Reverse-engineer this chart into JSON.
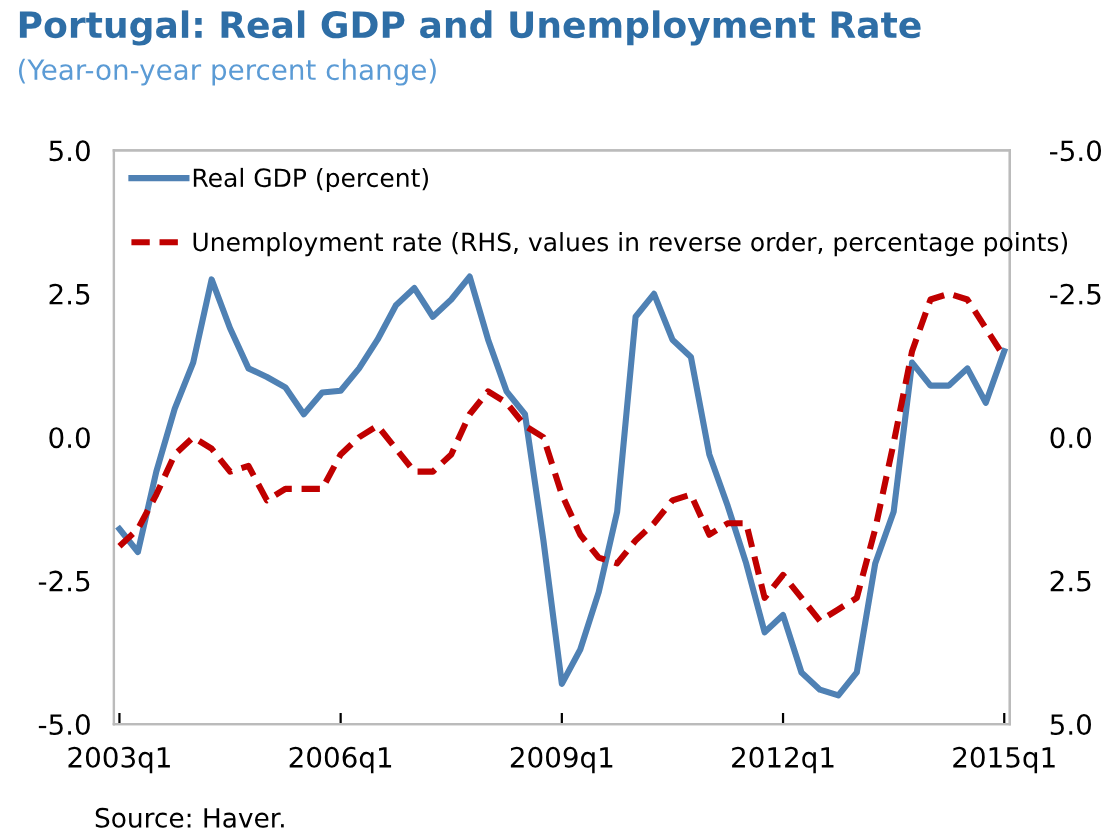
{
  "chart_data": {
    "type": "line",
    "title": "Portugal: Real GDP and Unemployment Rate",
    "subtitle": "(Year-on-year percent change)",
    "categories": [
      "2003q1",
      null,
      null,
      null,
      null,
      null,
      null,
      null,
      null,
      null,
      null,
      null,
      "2006q1",
      null,
      null,
      null,
      null,
      null,
      null,
      null,
      null,
      null,
      null,
      null,
      "2009q1",
      null,
      null,
      null,
      null,
      null,
      null,
      null,
      null,
      null,
      null,
      null,
      "2012q1",
      null,
      null,
      null,
      null,
      null,
      null,
      null,
      null,
      null,
      null,
      null,
      "2015q1"
    ],
    "series": [
      {
        "name": "Real GDP (percent)",
        "color": "#4f81b4",
        "line_style": "solid",
        "values": [
          -1.6,
          -2.0,
          -0.6,
          0.5,
          1.3,
          2.75,
          1.9,
          1.2,
          1.05,
          0.87,
          0.4,
          0.78,
          0.81,
          1.2,
          1.7,
          2.3,
          2.6,
          2.1,
          2.4,
          2.8,
          1.7,
          0.8,
          0.4,
          -1.8,
          -4.3,
          -3.7,
          -2.7,
          -1.3,
          2.1,
          2.5,
          1.7,
          1.4,
          -0.3,
          -1.2,
          -2.2,
          -3.4,
          -3.1,
          -4.1,
          -4.4,
          -4.5,
          -4.1,
          -2.2,
          -1.3,
          1.3,
          0.9,
          0.9,
          1.2,
          0.6,
          1.5
        ]
      },
      {
        "name": "Unemployment rate (RHS, values in reverse order, percentage points)",
        "color": "#c00000",
        "line_style": "dashed",
        "axis": "y2",
        "values": [
          1.9,
          1.6,
          1.0,
          0.3,
          0.0,
          0.2,
          0.6,
          0.5,
          1.1,
          0.9,
          0.9,
          0.9,
          0.3,
          0.0,
          -0.2,
          0.2,
          0.6,
          0.6,
          0.3,
          -0.4,
          -0.8,
          -0.6,
          -0.2,
          0.0,
          1.0,
          1.7,
          2.1,
          2.2,
          1.8,
          1.5,
          1.1,
          1.0,
          1.7,
          1.5,
          1.5,
          2.8,
          2.4,
          2.8,
          3.2,
          3.0,
          2.8,
          1.6,
          0.1,
          -1.5,
          -2.4,
          -2.5,
          -2.4,
          -1.9,
          -1.4
        ]
      }
    ],
    "ylim": [
      -5,
      5
    ],
    "yticks": [
      {
        "value": -5,
        "label": "-5.0"
      },
      {
        "value": -2.5,
        "label": "-2.5"
      },
      {
        "value": 0,
        "label": "0.0"
      },
      {
        "value": 2.5,
        "label": "2.5"
      },
      {
        "value": 5,
        "label": "5.0"
      }
    ],
    "y2lim": [
      5,
      -5
    ],
    "y2ticks": [
      {
        "value": 5,
        "label": "5.0"
      },
      {
        "value": 2.5,
        "label": "2.5"
      },
      {
        "value": 0,
        "label": "0.0"
      },
      {
        "value": -2.5,
        "label": "-2.5"
      },
      {
        "value": -5,
        "label": "-5.0"
      }
    ],
    "grid": false,
    "legend": "top left",
    "marker": "none",
    "annotations": [
      "Source: Haver."
    ]
  }
}
